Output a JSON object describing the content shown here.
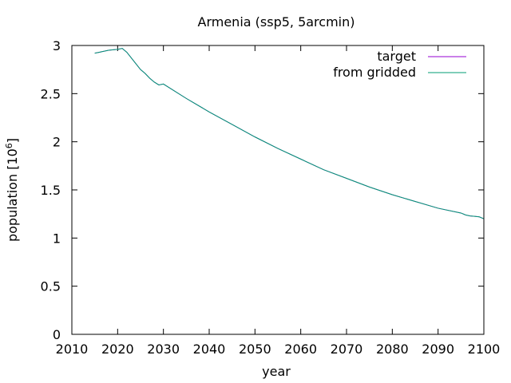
{
  "chart_data": {
    "type": "line",
    "title": "Armenia (ssp5, 5arcmin)",
    "xlabel": "year",
    "ylabel": "population [10",
    "ylabel_exponent": "6",
    "ylabel_close": "]",
    "xlim": [
      2010,
      2100
    ],
    "ylim": [
      0,
      3
    ],
    "xticks": [
      2010,
      2020,
      2030,
      2040,
      2050,
      2060,
      2070,
      2080,
      2090,
      2100
    ],
    "yticks": [
      0,
      0.5,
      1,
      1.5,
      2,
      2.5,
      3
    ],
    "ytick_labels": [
      "0",
      "0.5",
      "1",
      "1.5",
      "2",
      "2.5",
      "3"
    ],
    "grid": false,
    "legend_position": "top-right",
    "series": [
      {
        "name": "target",
        "color": "#9400d3",
        "x": [
          2015,
          2016,
          2017,
          2018,
          2019,
          2020,
          2021,
          2022,
          2023,
          2024,
          2025,
          2026,
          2027,
          2028,
          2029,
          2030,
          2035,
          2040,
          2045,
          2050,
          2055,
          2060,
          2065,
          2070,
          2075,
          2080,
          2085,
          2090,
          2095,
          2096,
          2097,
          2098,
          2099,
          2100
        ],
        "y": [
          2.92,
          2.93,
          2.94,
          2.95,
          2.955,
          2.96,
          2.97,
          2.93,
          2.87,
          2.81,
          2.75,
          2.71,
          2.66,
          2.62,
          2.59,
          2.6,
          2.45,
          2.31,
          2.18,
          2.05,
          1.93,
          1.82,
          1.71,
          1.62,
          1.53,
          1.45,
          1.38,
          1.31,
          1.26,
          1.24,
          1.23,
          1.225,
          1.22,
          1.2
        ]
      },
      {
        "name": "from gridded",
        "color": "#009e73",
        "x": [
          2015,
          2016,
          2017,
          2018,
          2019,
          2020,
          2021,
          2022,
          2023,
          2024,
          2025,
          2026,
          2027,
          2028,
          2029,
          2030,
          2035,
          2040,
          2045,
          2050,
          2055,
          2060,
          2065,
          2070,
          2075,
          2080,
          2085,
          2090,
          2095,
          2096,
          2097,
          2098,
          2099,
          2100
        ],
        "y": [
          2.92,
          2.93,
          2.94,
          2.95,
          2.955,
          2.96,
          2.97,
          2.93,
          2.87,
          2.81,
          2.75,
          2.71,
          2.66,
          2.62,
          2.59,
          2.6,
          2.45,
          2.31,
          2.18,
          2.05,
          1.93,
          1.82,
          1.71,
          1.62,
          1.53,
          1.45,
          1.38,
          1.31,
          1.26,
          1.24,
          1.23,
          1.225,
          1.22,
          1.2
        ]
      }
    ]
  }
}
